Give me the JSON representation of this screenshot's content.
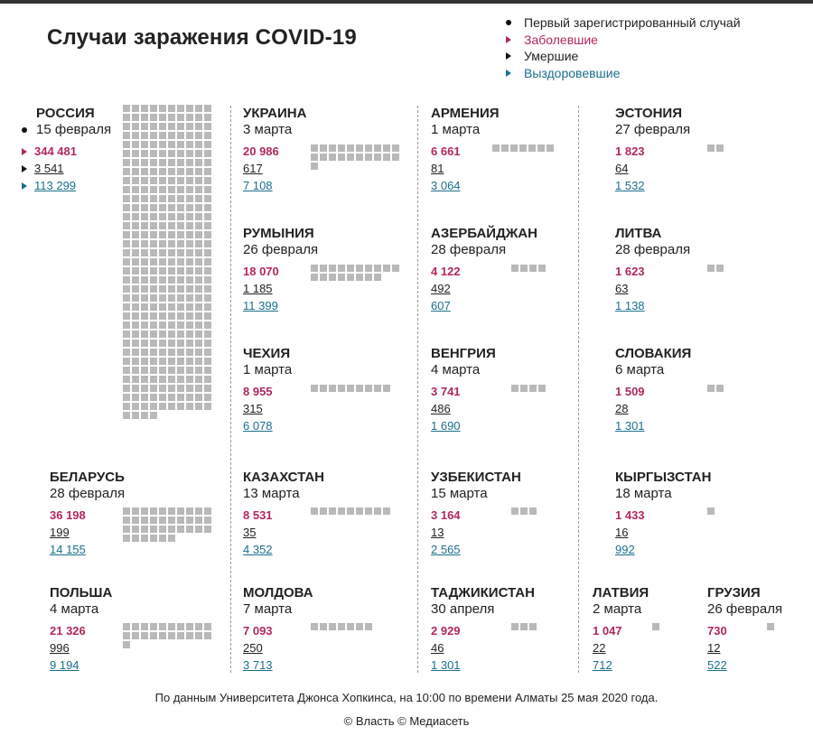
{
  "title": "Случаи заражения COVID-19",
  "legend": {
    "first_case": "Первый зарегистрированный случай",
    "cases": "Заболевшие",
    "deaths": "Умершие",
    "recovered": "Выздоровевшие"
  },
  "colors": {
    "cases": "#b0285e",
    "deaths": "#222222",
    "recovered": "#1b6f8e",
    "squares": "#b9b9b9"
  },
  "footer": {
    "source": "По данным Университета Джонса Хопкинса, на 10:00 по времени Алматы 25 мая 2020 года.",
    "copyright": "© Власть © Медиасеть"
  },
  "chart_data": {
    "type": "table",
    "square_unit_cases": 1000,
    "countries": [
      {
        "name": "РОССИЯ",
        "first_case": "15 февраля",
        "cases": "344 481",
        "deaths": "3 541",
        "recovered": "113 299",
        "squares": 344
      },
      {
        "name": "УКРАИНА",
        "first_case": "3 марта",
        "cases": "20 986",
        "deaths": "617",
        "recovered": "7 108",
        "squares": 21
      },
      {
        "name": "АРМЕНИЯ",
        "first_case": "1 марта",
        "cases": "6 661",
        "deaths": "81",
        "recovered": "3 064",
        "squares": 7
      },
      {
        "name": "ЭСТОНИЯ",
        "first_case": "27 февраля",
        "cases": "1 823",
        "deaths": "64",
        "recovered": "1 532",
        "squares": 2
      },
      {
        "name": "РУМЫНИЯ",
        "first_case": "26 февраля",
        "cases": "18 070",
        "deaths": "1 185",
        "recovered": "11 399",
        "squares": 18
      },
      {
        "name": "АЗЕРБАЙДЖАН",
        "first_case": "28 февраля",
        "cases": "4 122",
        "deaths": "492",
        "recovered": "607",
        "squares": 4
      },
      {
        "name": "ЛИТВА",
        "first_case": "28 февраля",
        "cases": "1 623",
        "deaths": "63",
        "recovered": "1 138",
        "squares": 2
      },
      {
        "name": "ЧЕХИЯ",
        "first_case": "1 марта",
        "cases": "8 955",
        "deaths": "315",
        "recovered": "6 078",
        "squares": 9
      },
      {
        "name": "ВЕНГРИЯ",
        "first_case": "4 марта",
        "cases": "3 741",
        "deaths": "486",
        "recovered": "1 690",
        "squares": 4
      },
      {
        "name": "СЛОВАКИЯ",
        "first_case": "6 марта",
        "cases": "1 509",
        "deaths": "28",
        "recovered": "1 301",
        "squares": 2
      },
      {
        "name": "БЕЛАРУСЬ",
        "first_case": "28 февраля",
        "cases": "36 198",
        "deaths": "199",
        "recovered": "14 155",
        "squares": 36
      },
      {
        "name": "КАЗАХСТАН",
        "first_case": "13 марта",
        "cases": "8 531",
        "deaths": "35",
        "recovered": "4 352",
        "squares": 9
      },
      {
        "name": "УЗБЕКИСТАН",
        "first_case": "15 марта",
        "cases": "3 164",
        "deaths": "13",
        "recovered": "2 565",
        "squares": 3
      },
      {
        "name": "КЫРГЫЗСТАН",
        "first_case": "18 марта",
        "cases": "1 433",
        "deaths": "16",
        "recovered": "992",
        "squares": 1
      },
      {
        "name": "ПОЛЬША",
        "first_case": "4 марта",
        "cases": "21 326",
        "deaths": "996",
        "recovered": "9 194",
        "squares": 21
      },
      {
        "name": "МОЛДОВА",
        "first_case": "7 марта",
        "cases": "7 093",
        "deaths": "250",
        "recovered": "3 713",
        "squares": 7
      },
      {
        "name": "ТАДЖИКИСТАН",
        "first_case": "30 апреля",
        "cases": "2 929",
        "deaths": "46",
        "recovered": "1 301",
        "squares": 3
      },
      {
        "name": "ЛАТВИЯ",
        "first_case": "2 марта",
        "cases": "1 047",
        "deaths": "22",
        "recovered": "712",
        "squares": 1
      },
      {
        "name": "ГРУЗИЯ",
        "first_case": "26 февраля",
        "cases": "730",
        "deaths": "12",
        "recovered": "522",
        "squares": 1
      }
    ]
  }
}
